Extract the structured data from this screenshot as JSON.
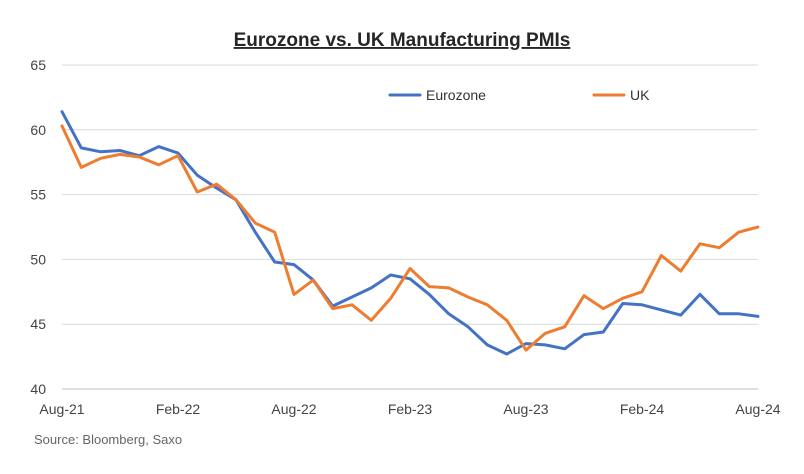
{
  "chart_data": {
    "type": "line",
    "title": "Eurozone vs. UK Manufacturing PMIs",
    "source": "Source: Bloomberg, Saxo",
    "xlabel": "",
    "ylabel": "",
    "ylim": [
      40,
      65
    ],
    "yticks": [
      40,
      45,
      50,
      55,
      60,
      65
    ],
    "grid": true,
    "legend_position": "top-right",
    "x_ticks": [
      {
        "index": 0,
        "label": "Aug-21"
      },
      {
        "index": 6,
        "label": "Feb-22"
      },
      {
        "index": 12,
        "label": "Aug-22"
      },
      {
        "index": 18,
        "label": "Feb-23"
      },
      {
        "index": 24,
        "label": "Aug-23"
      },
      {
        "index": 30,
        "label": "Feb-24"
      },
      {
        "index": 36,
        "label": "Aug-24"
      }
    ],
    "x": [
      "Aug-21",
      "Sep-21",
      "Oct-21",
      "Nov-21",
      "Dec-21",
      "Jan-22",
      "Feb-22",
      "Mar-22",
      "Apr-22",
      "May-22",
      "Jun-22",
      "Jul-22",
      "Aug-22",
      "Sep-22",
      "Oct-22",
      "Nov-22",
      "Dec-22",
      "Jan-23",
      "Feb-23",
      "Mar-23",
      "Apr-23",
      "May-23",
      "Jun-23",
      "Jul-23",
      "Aug-23",
      "Sep-23",
      "Oct-23",
      "Nov-23",
      "Dec-23",
      "Jan-24",
      "Feb-24",
      "Mar-24",
      "Apr-24",
      "May-24",
      "Jun-24",
      "Jul-24",
      "Aug-24"
    ],
    "series": [
      {
        "name": "Eurozone",
        "color": "#4472c4",
        "values": [
          61.4,
          58.6,
          58.3,
          58.4,
          58.0,
          58.7,
          58.2,
          56.5,
          55.5,
          54.6,
          52.1,
          49.8,
          49.6,
          48.4,
          46.4,
          47.1,
          47.8,
          48.8,
          48.5,
          47.3,
          45.8,
          44.8,
          43.4,
          42.7,
          43.5,
          43.4,
          43.1,
          44.2,
          44.4,
          46.6,
          46.5,
          46.1,
          45.7,
          47.3,
          45.8,
          45.8,
          45.6
        ]
      },
      {
        "name": "UK",
        "color": "#ed7d31",
        "values": [
          60.3,
          57.1,
          57.8,
          58.1,
          57.9,
          57.3,
          58.0,
          55.2,
          55.8,
          54.6,
          52.8,
          52.1,
          47.3,
          48.4,
          46.2,
          46.5,
          45.3,
          47.0,
          49.3,
          47.9,
          47.8,
          47.1,
          46.5,
          45.3,
          43.0,
          44.3,
          44.8,
          47.2,
          46.2,
          47.0,
          47.5,
          50.3,
          49.1,
          51.2,
          50.9,
          52.1,
          52.5
        ]
      }
    ]
  }
}
